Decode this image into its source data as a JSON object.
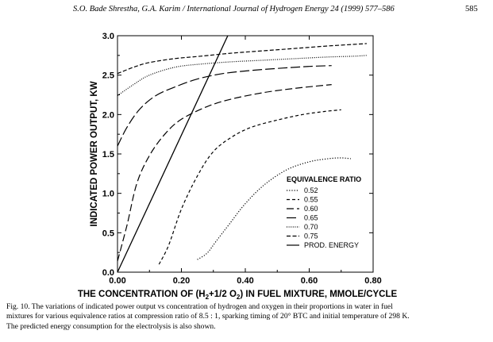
{
  "header": {
    "authors_journal": "S.O. Bade Shrestha, G.A. Karim / International Journal of Hydrogen Energy 24 (1999) 577–586",
    "page_number": "585"
  },
  "caption": {
    "lines": [
      "Fig. 10. The variations of indicated power output vs concentration of hydrogen and oxygen in their proportions in water in fuel",
      "mixtures for various equivalence ratios at compression ratio of 8.5 : 1, sparking timing of 20° BTC and initial temperature of 298 K.",
      "The predicted energy consumption for the electrolysis is also shown."
    ]
  },
  "chart_data": {
    "type": "line",
    "xlabel_parts": [
      "THE CONCENTRATION OF (H",
      "2",
      "+1/2 O",
      "2",
      ") IN FUEL MIXTURE, MMOLE/CYCLE"
    ],
    "ylabel": "INDICATED POWER OUTPUT, KW",
    "xlim": [
      0.0,
      0.8
    ],
    "ylim": [
      0.0,
      3.0
    ],
    "x_ticks": [
      "0.00",
      "0.20",
      "0.40",
      "0.60",
      "0.80"
    ],
    "y_ticks": [
      "0.0",
      "0.5",
      "1.0",
      "1.5",
      "2.0",
      "2.5",
      "3.0"
    ],
    "x_tick_values": [
      0.0,
      0.2,
      0.4,
      0.6,
      0.8
    ],
    "y_tick_values": [
      0.0,
      0.5,
      1.0,
      1.5,
      2.0,
      2.5,
      3.0
    ],
    "grid": false,
    "legend_title": "EQUIVALENCE RATIO",
    "legend_position": "lower-right",
    "series": [
      {
        "name": "0.52",
        "dash": "1.2,2",
        "x": [
          0.25,
          0.28,
          0.31,
          0.35,
          0.4,
          0.46,
          0.53,
          0.6,
          0.66,
          0.7,
          0.73
        ],
        "y": [
          0.16,
          0.24,
          0.4,
          0.61,
          0.87,
          1.11,
          1.3,
          1.4,
          1.44,
          1.45,
          1.44
        ]
      },
      {
        "name": "0.55",
        "dash": "4,3",
        "x": [
          0.13,
          0.16,
          0.2,
          0.25,
          0.3,
          0.36,
          0.42,
          0.5,
          0.58,
          0.65,
          0.7
        ],
        "y": [
          0.1,
          0.34,
          0.8,
          1.22,
          1.53,
          1.72,
          1.84,
          1.93,
          2.0,
          2.04,
          2.06
        ]
      },
      {
        "name": "0.60",
        "dash": "9,4",
        "x": [
          0.0,
          0.03,
          0.06,
          0.1,
          0.15,
          0.2,
          0.28,
          0.36,
          0.46,
          0.55,
          0.62,
          0.67
        ],
        "y": [
          0.14,
          0.6,
          1.12,
          1.48,
          1.76,
          1.94,
          2.1,
          2.2,
          2.28,
          2.33,
          2.36,
          2.38
        ]
      },
      {
        "name": "0.65",
        "dash": "12,4",
        "x": [
          0.0,
          0.03,
          0.07,
          0.12,
          0.18,
          0.25,
          0.33,
          0.42,
          0.52,
          0.6,
          0.67
        ],
        "y": [
          1.6,
          1.84,
          2.07,
          2.24,
          2.35,
          2.45,
          2.52,
          2.56,
          2.59,
          2.61,
          2.62
        ]
      },
      {
        "name": "0.70",
        "dash": "1,1.6",
        "x": [
          0.0,
          0.05,
          0.1,
          0.18,
          0.26,
          0.36,
          0.46,
          0.56,
          0.66,
          0.74,
          0.78
        ],
        "y": [
          2.24,
          2.38,
          2.5,
          2.6,
          2.64,
          2.67,
          2.69,
          2.71,
          2.73,
          2.74,
          2.75
        ]
      },
      {
        "name": "0.75",
        "dash": "5,2.5",
        "x": [
          0.0,
          0.05,
          0.1,
          0.18,
          0.26,
          0.36,
          0.46,
          0.56,
          0.66,
          0.74,
          0.78
        ],
        "y": [
          2.52,
          2.6,
          2.66,
          2.71,
          2.74,
          2.78,
          2.81,
          2.84,
          2.87,
          2.89,
          2.9
        ]
      },
      {
        "name": "PROD. ENERGY",
        "dash": "",
        "x": [
          0.0,
          0.345
        ],
        "y": [
          0.0,
          3.0
        ]
      }
    ]
  }
}
